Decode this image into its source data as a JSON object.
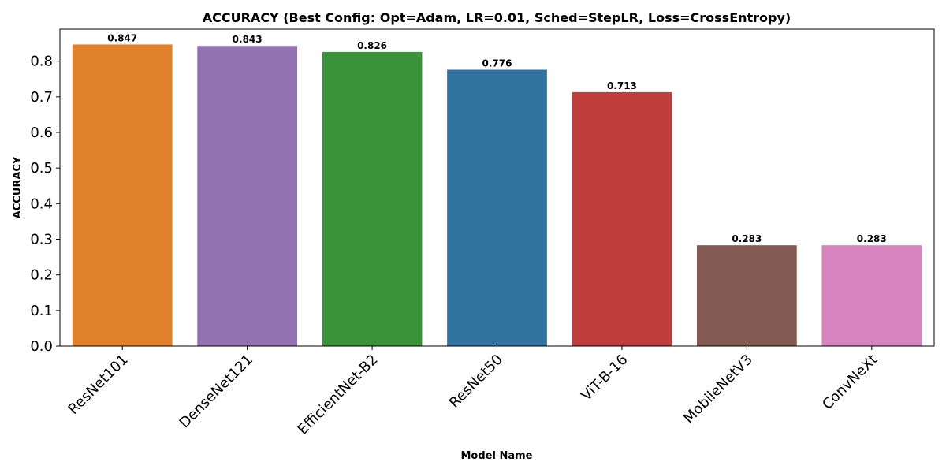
{
  "chart_data": {
    "type": "bar",
    "title": "ACCURACY (Best Config: Opt=Adam, LR=0.01, Sched=StepLR, Loss=CrossEntropy)",
    "xlabel": "Model Name",
    "ylabel": "ACCURACY",
    "categories": [
      "ResNet101",
      "DenseNet121",
      "EfficientNet-B2",
      "ResNet50",
      "ViT-B-16",
      "MobileNetV3",
      "ConvNeXt"
    ],
    "values": [
      0.847,
      0.843,
      0.826,
      0.776,
      0.713,
      0.283,
      0.283
    ],
    "data_labels": [
      "0.847",
      "0.843",
      "0.826",
      "0.776",
      "0.713",
      "0.283",
      "0.283"
    ],
    "colors": [
      "#e1812c",
      "#9372b2",
      "#3a923a",
      "#3274a1",
      "#c03d3e",
      "#845b53",
      "#d684bd"
    ],
    "ylim": [
      0,
      0.89
    ],
    "yticks": [
      0.0,
      0.1,
      0.2,
      0.3,
      0.4,
      0.5,
      0.6,
      0.7,
      0.8
    ],
    "ytick_labels": [
      "0.0",
      "0.1",
      "0.2",
      "0.3",
      "0.4",
      "0.5",
      "0.6",
      "0.7",
      "0.8"
    ],
    "xtick_rotation_deg": 45,
    "grid": false,
    "legend": "none"
  }
}
